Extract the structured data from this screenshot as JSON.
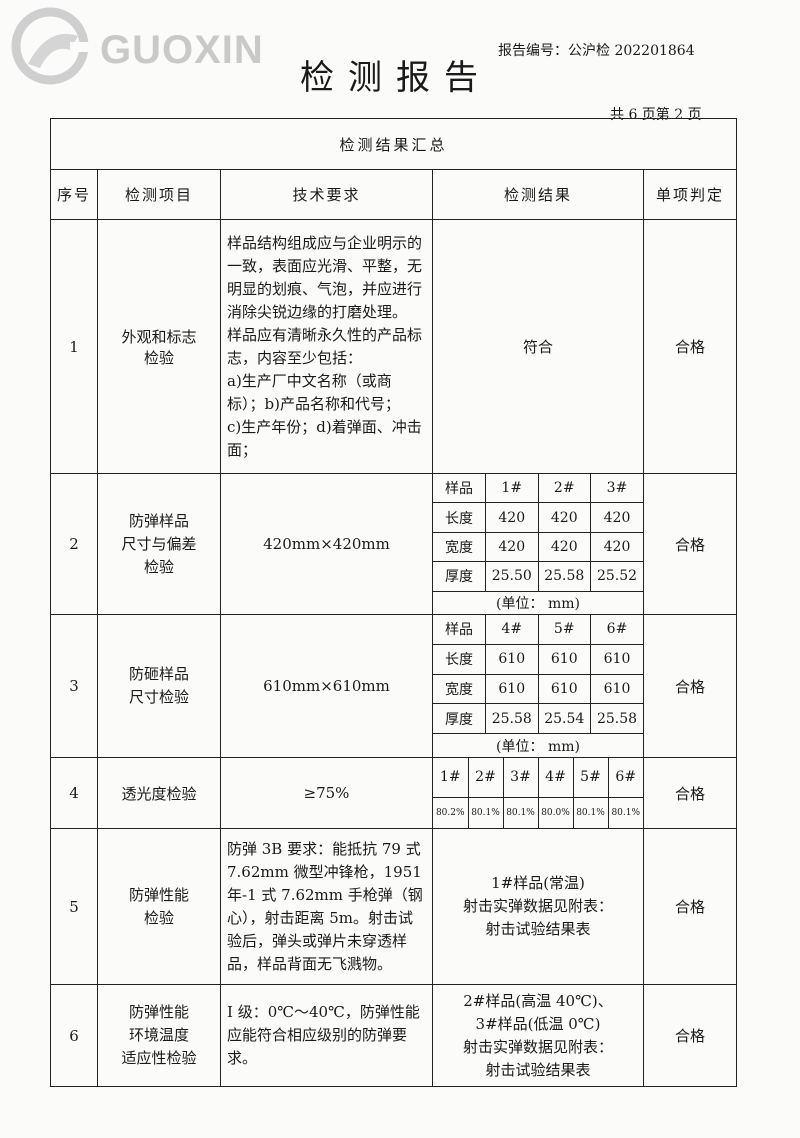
{
  "header": {
    "logo_text": "GUOXIN",
    "report_number": "报告编号：公沪检 202201864",
    "title": "检测报告",
    "pages": "共 6 页第 2 页"
  },
  "table": {
    "summary_title": "检测结果汇总",
    "columns": [
      "序号",
      "检测项目",
      "技术要求",
      "检测结果",
      "单项判定"
    ],
    "rows": [
      {
        "no": "1",
        "item": [
          "外观和标志",
          "检验"
        ],
        "requirement": [
          "样品结构组成应与企业明示的一致，表面应光滑、平整，无明显的划痕、气泡，并应进行消除尖锐边缘的打磨处理。",
          "样品应有清晰永久性的产品标志，内容至少包括：",
          "a)生产厂中文名称（或商标）；b)产品名称和代号；",
          "c)生产年份；d)着弹面、冲击面；"
        ],
        "result": "符合",
        "verdict": "合格"
      },
      {
        "no": "2",
        "item": [
          "防弹样品",
          "尺寸与偏差",
          "检验"
        ],
        "requirement": [
          "420mm×420mm"
        ],
        "result_table": {
          "header": [
            "样品",
            "1#",
            "2#",
            "3#"
          ],
          "rows": [
            [
              "长度",
              "420",
              "420",
              "420"
            ],
            [
              "宽度",
              "420",
              "420",
              "420"
            ],
            [
              "厚度",
              "25.50",
              "25.58",
              "25.52"
            ]
          ],
          "unit": "(单位：  mm)"
        },
        "verdict": "合格"
      },
      {
        "no": "3",
        "item": [
          "防砸样品",
          "尺寸检验"
        ],
        "requirement": [
          "610mm×610mm"
        ],
        "result_table": {
          "header": [
            "样品",
            "4#",
            "5#",
            "6#"
          ],
          "rows": [
            [
              "长度",
              "610",
              "610",
              "610"
            ],
            [
              "宽度",
              "610",
              "610",
              "610"
            ],
            [
              "厚度",
              "25.58",
              "25.54",
              "25.58"
            ]
          ],
          "unit": "(单位：  mm)"
        },
        "verdict": "合格"
      },
      {
        "no": "4",
        "item": [
          "透光度检验"
        ],
        "requirement": [
          "≥75%"
        ],
        "transmittance": {
          "samples": [
            "1#",
            "2#",
            "3#",
            "4#",
            "5#",
            "6#"
          ],
          "values": [
            "80.2%",
            "80.1%",
            "80.1%",
            "80.0%",
            "80.1%",
            "80.1%"
          ]
        },
        "verdict": "合格"
      },
      {
        "no": "5",
        "item": [
          "防弹性能",
          "检验"
        ],
        "requirement": [
          "防弹 3B 要求：能抵抗 79 式 7.62mm 微型冲锋枪，1951 年-1 式 7.62mm 手枪弹（钢心），射击距离 5m。射击试验后，弹头或弹片未穿透样品，样品背面无飞溅物。"
        ],
        "result_lines": [
          "1#样品(常温)",
          "射击实弹数据见附表：",
          "射击试验结果表"
        ],
        "verdict": "合格"
      },
      {
        "no": "6",
        "item": [
          "防弹性能",
          "环境温度",
          "适应性检验"
        ],
        "requirement": [
          "I 级：0℃～40℃，防弹性能应能符合相应级别的防弹要求。"
        ],
        "result_lines": [
          "2#样品(高温 40℃)、",
          "3#样品(低温 0℃)",
          "射击实弹数据见附表：",
          "射击试验结果表"
        ],
        "verdict": "合格"
      }
    ]
  }
}
